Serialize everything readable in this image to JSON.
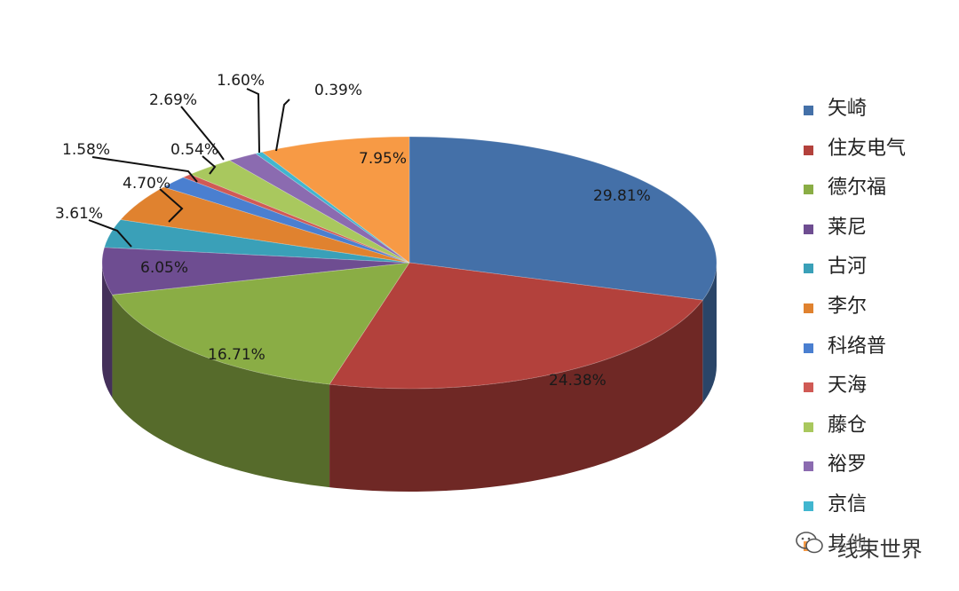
{
  "chart_data": {
    "type": "pie",
    "title": "",
    "style": "3d",
    "legend_position": "right",
    "slices": [
      {
        "label": "矢崎",
        "value": 29.81,
        "display": "29.81%",
        "color": "#4470a8"
      },
      {
        "label": "住友电气",
        "value": 24.38,
        "display": "24.38%",
        "color": "#b3413c"
      },
      {
        "label": "德尔福",
        "value": 16.71,
        "display": "16.71%",
        "color": "#8aad45"
      },
      {
        "label": "莱尼",
        "value": 6.05,
        "display": "6.05%",
        "color": "#6e4d91"
      },
      {
        "label": "古河",
        "value": 3.61,
        "display": "3.61%",
        "color": "#3aa0b8"
      },
      {
        "label": "李尔",
        "value": 4.7,
        "display": "4.70%",
        "color": "#e0822f"
      },
      {
        "label": "科络普",
        "value": 1.58,
        "display": "1.58%",
        "color": "#4a7fd0"
      },
      {
        "label": "天海",
        "value": 0.54,
        "display": "0.54%",
        "color": "#d05a55"
      },
      {
        "label": "藤仓",
        "value": 2.69,
        "display": "2.69%",
        "color": "#a9c85e"
      },
      {
        "label": "裕罗",
        "value": 1.6,
        "display": "1.60%",
        "color": "#8b6bb0"
      },
      {
        "label": "京信",
        "value": 0.39,
        "display": "0.39%",
        "color": "#41b6cf"
      },
      {
        "label": "其他",
        "value": 7.95,
        "display": "7.95%",
        "color": "#f79a45"
      }
    ]
  },
  "watermark": {
    "icon": "wechat-icon",
    "text": "线束世界"
  }
}
